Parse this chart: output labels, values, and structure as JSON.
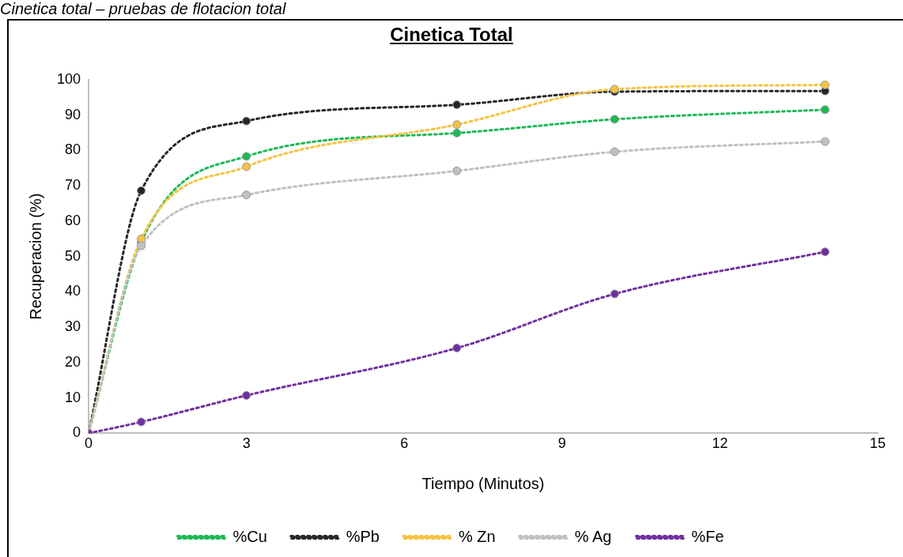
{
  "chart_data": {
    "type": "line",
    "title": "Cinetica  Total",
    "xlabel": "Tiempo (Minutos)",
    "ylabel": "Recuperacion (%)",
    "annotations": [
      "Cinetica total – pruebas de flotacion total"
    ],
    "x": [
      0,
      1,
      3,
      7,
      10,
      14
    ],
    "series": [
      {
        "name": "%Cu",
        "color": "#1db954",
        "values": [
          0,
          54,
          78.3,
          84.9,
          88.8,
          91.5
        ]
      },
      {
        "name": "%Pb",
        "color": "#262626",
        "values": [
          0,
          68.6,
          88.3,
          92.9,
          96.6,
          96.8
        ]
      },
      {
        "name": "% Zn",
        "color": "#f5c342",
        "values": [
          0,
          55,
          75.4,
          87.3,
          97.3,
          98.5
        ]
      },
      {
        "name": "% Ag",
        "color": "#c0c0c0",
        "values": [
          0,
          53,
          67.4,
          74.2,
          79.6,
          82.5
        ]
      },
      {
        "name": "%Fe",
        "color": "#7030a0",
        "values": [
          0,
          3.2,
          10.7,
          24.1,
          39.4,
          51.3
        ]
      }
    ],
    "xlim": [
      0,
      15
    ],
    "xticks": [
      0,
      3,
      6,
      9,
      12,
      15
    ],
    "ylim": [
      0,
      100
    ],
    "yticks": [
      0,
      10,
      20,
      30,
      40,
      50,
      60,
      70,
      80,
      90,
      100
    ],
    "grid": false,
    "legend": "bottom",
    "marker": "circle",
    "line_style": "dotted"
  }
}
